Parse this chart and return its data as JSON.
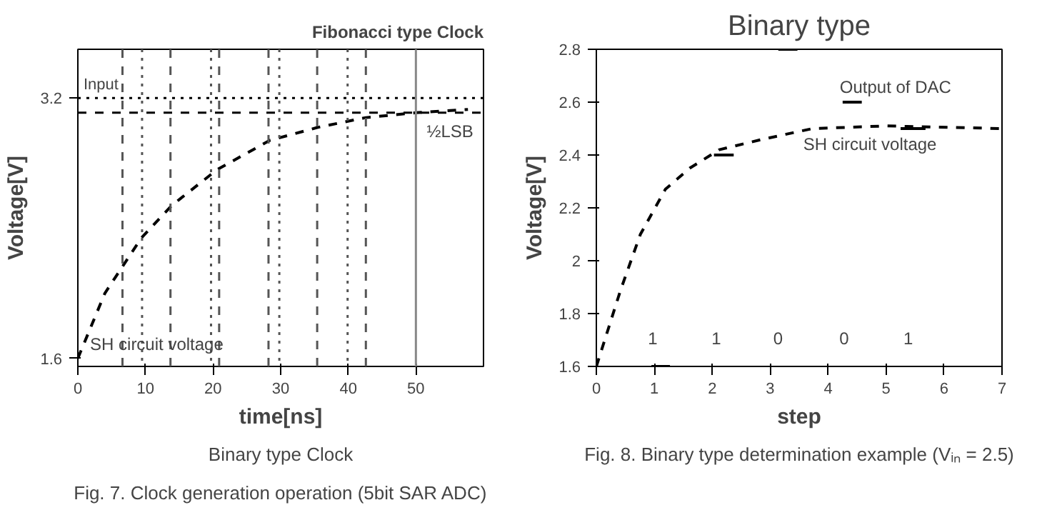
{
  "chart_data": [
    {
      "type": "line",
      "title": "Fibonacci type Clock",
      "xlabel": "time[ns]",
      "ylabel": "Voltage[V]",
      "xlim": [
        0,
        60
      ],
      "ylim": [
        1.55,
        3.5
      ],
      "xticks": [
        0,
        10,
        20,
        30,
        40,
        50
      ],
      "yticks": [
        1.6,
        3.2
      ],
      "series": [
        {
          "color": "#000000",
          "line_style": "dashed",
          "x": [
            0,
            4,
            9.4,
            13.9,
            20.6,
            28.4,
            35.5,
            42.6,
            50,
            57.7
          ],
          "values": [
            1.6,
            2.0,
            2.34,
            2.54,
            2.76,
            2.94,
            3.02,
            3.08,
            3.11,
            3.13
          ]
        }
      ],
      "ref_lines": [
        {
          "axis": "y",
          "value": 3.2,
          "label": "Input",
          "line_style": "dotted",
          "color": "#000000"
        },
        {
          "axis": "y",
          "value": 3.11,
          "label": null,
          "line_style": "dashed",
          "color": "#000000"
        },
        {
          "axis": "x",
          "value": 6.6,
          "label": null,
          "line_style": "dashed",
          "color": "#555555"
        },
        {
          "axis": "x",
          "value": 13.7,
          "label": null,
          "line_style": "dashed",
          "color": "#555555"
        },
        {
          "axis": "x",
          "value": 20.9,
          "label": null,
          "line_style": "dashed",
          "color": "#555555"
        },
        {
          "axis": "x",
          "value": 28.2,
          "label": null,
          "line_style": "dashed",
          "color": "#555555"
        },
        {
          "axis": "x",
          "value": 35.4,
          "label": null,
          "line_style": "dashed",
          "color": "#555555"
        },
        {
          "axis": "x",
          "value": 42.6,
          "label": null,
          "line_style": "dashed",
          "color": "#555555"
        },
        {
          "axis": "x",
          "value": 9.5,
          "label": null,
          "line_style": "dotted",
          "color": "#555555"
        },
        {
          "axis": "x",
          "value": 19.7,
          "label": null,
          "line_style": "dotted",
          "color": "#555555"
        },
        {
          "axis": "x",
          "value": 29.8,
          "label": null,
          "line_style": "dotted",
          "color": "#555555"
        },
        {
          "axis": "x",
          "value": 39.9,
          "label": null,
          "line_style": "dotted",
          "color": "#555555"
        },
        {
          "axis": "x",
          "value": 50,
          "label": null,
          "line_style": "solid",
          "color": "#888888"
        }
      ],
      "annotations": [
        "SH circuit voltage",
        "½LSB",
        "Binary type Clock",
        "Fig. 7. Clock generation operation (5bit SAR ADC)"
      ]
    },
    {
      "type": "line",
      "title": "Binary type",
      "xlabel": "step",
      "ylabel": "Voltage[V]",
      "xlim": [
        0,
        7
      ],
      "ylim": [
        1.6,
        2.8
      ],
      "xticks": [
        0,
        1,
        2,
        3,
        4,
        5,
        6,
        7
      ],
      "yticks": [
        1.6,
        1.8,
        {
          "value": 2,
          "label": "2"
        },
        2.2,
        2.4,
        2.6,
        2.8
      ],
      "series": [
        {
          "color": "#000000",
          "line_style": "dashed",
          "x": [
            0,
            0.42,
            0.76,
            1.19,
            1.61,
            2.12,
            2.88,
            3.73,
            5,
            7
          ],
          "values": [
            1.6,
            1.89,
            2.1,
            2.27,
            2.35,
            2.42,
            2.46,
            2.5,
            2.51,
            2.5
          ]
        },
        {
          "color": "#000000",
          "line_style": "solid",
          "x": [
            0.95,
            1.27
          ],
          "values": [
            1.6,
            1.6
          ]
        },
        {
          "color": "#000000",
          "line_style": "solid",
          "x": [
            2.03,
            2.37
          ],
          "values": [
            2.4,
            2.4
          ]
        },
        {
          "color": "#000000",
          "line_style": "solid",
          "x": [
            3.14,
            3.47
          ],
          "values": [
            2.8,
            2.8
          ]
        },
        {
          "color": "#000000",
          "line_style": "solid",
          "x": [
            4.25,
            4.58
          ],
          "values": [
            2.6,
            2.6
          ]
        },
        {
          "color": "#000000",
          "line_style": "solid",
          "x": [
            5.25,
            5.68
          ],
          "values": [
            2.5,
            2.5
          ]
        }
      ],
      "annotations": [
        "Output of DAC",
        "SH circuit voltage",
        "1",
        "1",
        "0",
        "0",
        "1",
        "Fig. 8. Binary type determination example (Vᵢₙ = 2.5)"
      ]
    }
  ]
}
